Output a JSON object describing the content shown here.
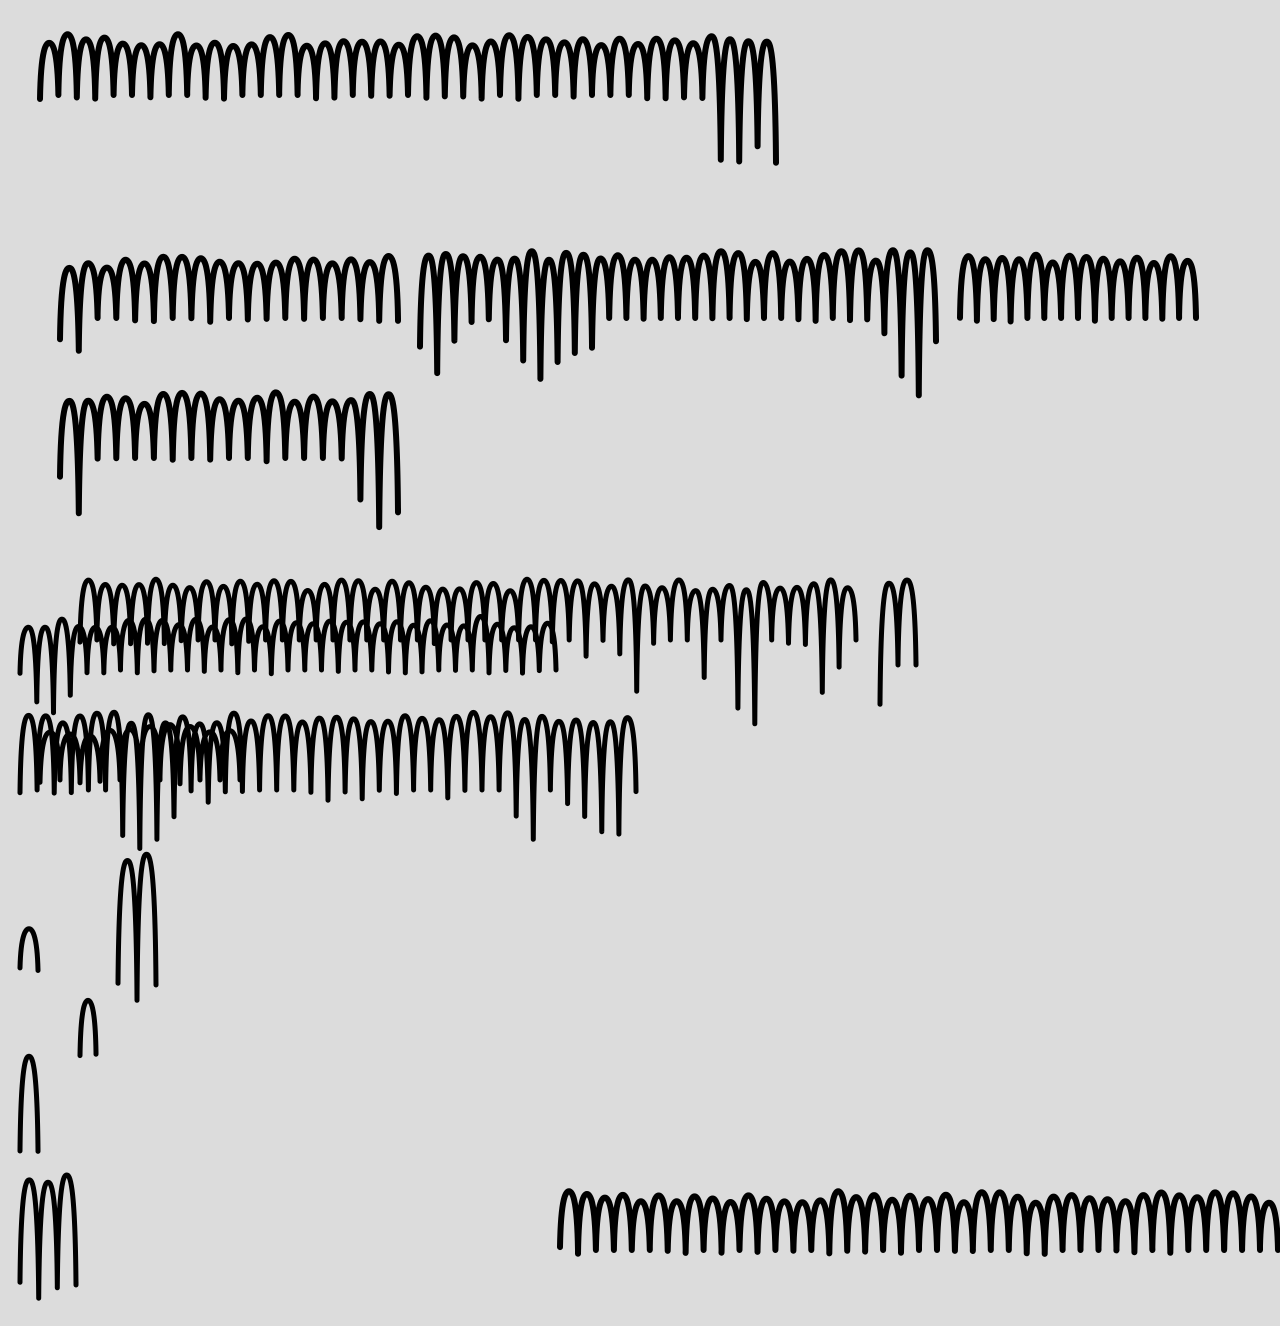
{
  "page": {
    "background_color": "#dcdcdc",
    "ink_color": "#000000"
  },
  "scribbles": [
    {
      "id": "row-1-top-line"
    },
    {
      "id": "row-2-block-left"
    },
    {
      "id": "row-2-block-middle"
    },
    {
      "id": "row-2-block-right"
    },
    {
      "id": "row-3-block"
    },
    {
      "id": "row-4-upper-overlap"
    },
    {
      "id": "row-4-lower-overlap"
    },
    {
      "id": "row-4-right-fragment"
    },
    {
      "id": "row-5-upper-overlap"
    },
    {
      "id": "row-5-lower-overlap"
    },
    {
      "id": "small-mark-1"
    },
    {
      "id": "small-mark-2"
    },
    {
      "id": "small-mark-3"
    },
    {
      "id": "small-mark-4"
    },
    {
      "id": "bottom-left-loops"
    },
    {
      "id": "bottom-right-line"
    }
  ]
}
